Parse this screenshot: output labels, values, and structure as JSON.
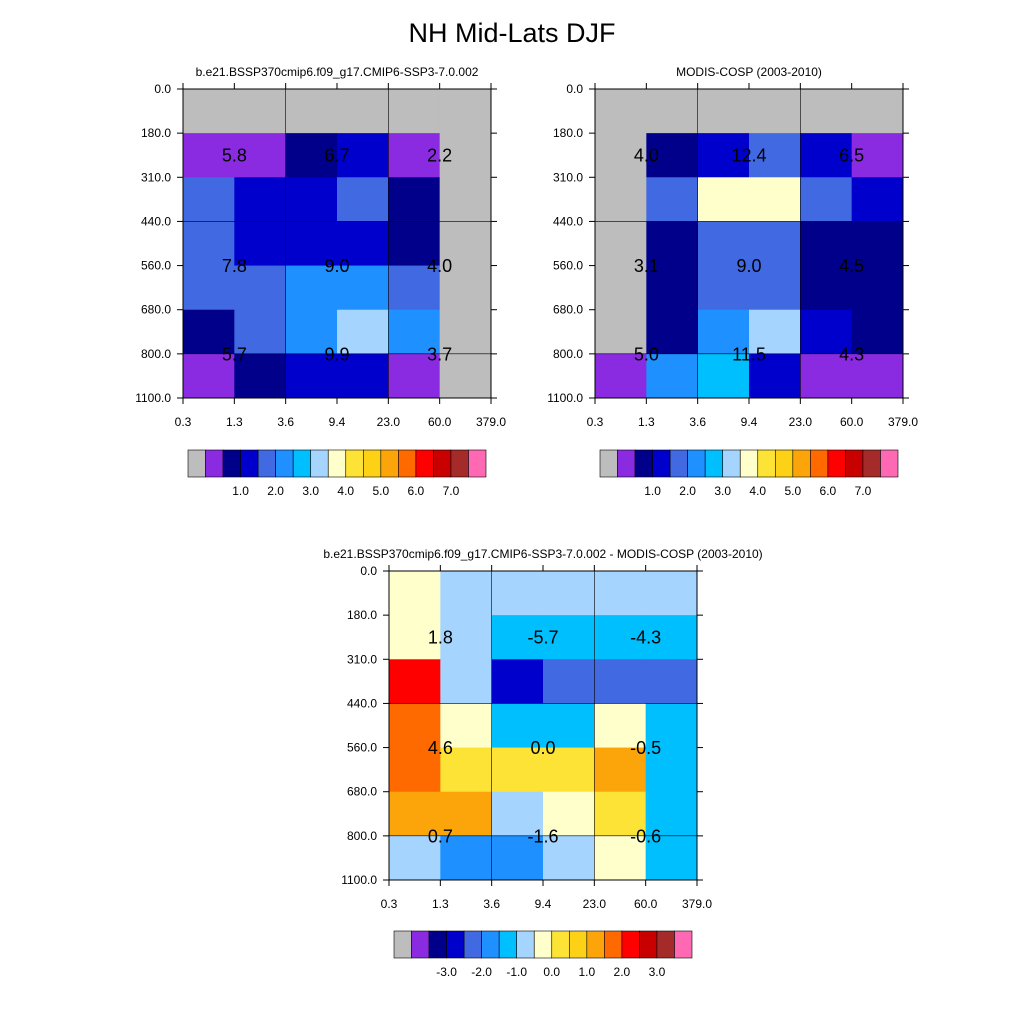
{
  "title": "NH Mid-Lats DJF",
  "palette": {
    "missing": "#bdbdbd",
    "colors": [
      "#8a2be2",
      "#00008b",
      "#0000cd",
      "#4169e1",
      "#1e90ff",
      "#00bfff",
      "#a5d4ff",
      "#ffffcc",
      "#fde335",
      "#fcd116",
      "#fca50a",
      "#ff6a00",
      "#ff0000",
      "#c80000",
      "#a52a2a",
      "#ff69b4"
    ]
  },
  "chart_data": [
    {
      "type": "heatmap",
      "title": "b.e21.BSSP370cmip6.f09_g17.CMIP6-SSP3-7.0.002",
      "x_ticks": [
        "0.3",
        "1.3",
        "3.6",
        "9.4",
        "23.0",
        "60.0",
        "379.0"
      ],
      "y_ticks": [
        "0.0",
        "180.0",
        "310.0",
        "440.0",
        "560.0",
        "680.0",
        "800.0",
        "1100.0"
      ],
      "grid_x": [
        2,
        4
      ],
      "grid_y": [
        3,
        6
      ],
      "cells": [
        [
          -1,
          -1,
          -1,
          -1,
          -1,
          -1
        ],
        [
          0,
          0,
          1,
          2,
          0,
          -1
        ],
        [
          3,
          2,
          2,
          3,
          1,
          -1
        ],
        [
          3,
          2,
          2,
          2,
          1,
          -1
        ],
        [
          3,
          3,
          4,
          4,
          3,
          -1
        ],
        [
          1,
          3,
          4,
          6,
          4,
          -1
        ],
        [
          0,
          1,
          2,
          2,
          0,
          -1
        ]
      ],
      "labels": [
        {
          "text": "5.8",
          "col": 1,
          "row": 1.5
        },
        {
          "text": "6.7",
          "col": 3,
          "row": 1.5
        },
        {
          "text": "2.2",
          "col": 5,
          "row": 1.5
        },
        {
          "text": "7.8",
          "col": 1,
          "row": 4
        },
        {
          "text": "9.0",
          "col": 3,
          "row": 4
        },
        {
          "text": "4.0",
          "col": 5,
          "row": 4
        },
        {
          "text": "5.7",
          "col": 1,
          "row": 6
        },
        {
          "text": "9.9",
          "col": 3,
          "row": 6
        },
        {
          "text": "3.7",
          "col": 5,
          "row": 6
        }
      ],
      "colorbar": {
        "labels": [
          "1.0",
          "2.0",
          "3.0",
          "4.0",
          "5.0",
          "6.0",
          "7.0"
        ]
      }
    },
    {
      "type": "heatmap",
      "title": "MODIS-COSP (2003-2010)",
      "x_ticks": [
        "0.3",
        "1.3",
        "3.6",
        "9.4",
        "23.0",
        "60.0",
        "379.0"
      ],
      "y_ticks": [
        "0.0",
        "180.0",
        "310.0",
        "440.0",
        "560.0",
        "680.0",
        "800.0",
        "1100.0"
      ],
      "grid_x": [
        2,
        4
      ],
      "grid_y": [
        3,
        6
      ],
      "cells": [
        [
          -1,
          -1,
          -1,
          -1,
          -1,
          -1
        ],
        [
          -1,
          1,
          2,
          3,
          2,
          0
        ],
        [
          -1,
          3,
          7,
          7,
          3,
          2
        ],
        [
          -1,
          1,
          3,
          3,
          1,
          1
        ],
        [
          -1,
          1,
          3,
          3,
          1,
          1
        ],
        [
          -1,
          1,
          4,
          6,
          2,
          1
        ],
        [
          0,
          4,
          5,
          2,
          0,
          0
        ]
      ],
      "labels": [
        {
          "text": "4.0",
          "col": 1,
          "row": 1.5
        },
        {
          "text": "12.4",
          "col": 3,
          "row": 1.5
        },
        {
          "text": "6.5",
          "col": 5,
          "row": 1.5
        },
        {
          "text": "3.1",
          "col": 1,
          "row": 4
        },
        {
          "text": "9.0",
          "col": 3,
          "row": 4
        },
        {
          "text": "4.5",
          "col": 5,
          "row": 4
        },
        {
          "text": "5.0",
          "col": 1,
          "row": 6
        },
        {
          "text": "11.5",
          "col": 3,
          "row": 6
        },
        {
          "text": "4.3",
          "col": 5,
          "row": 6
        }
      ],
      "colorbar": {
        "labels": [
          "1.0",
          "2.0",
          "3.0",
          "4.0",
          "5.0",
          "6.0",
          "7.0"
        ]
      }
    },
    {
      "type": "heatmap",
      "title": "b.e21.BSSP370cmip6.f09_g17.CMIP6-SSP3-7.0.002 - MODIS-COSP (2003-2010)",
      "x_ticks": [
        "0.3",
        "1.3",
        "3.6",
        "9.4",
        "23.0",
        "60.0",
        "379.0"
      ],
      "y_ticks": [
        "0.0",
        "180.0",
        "310.0",
        "440.0",
        "560.0",
        "680.0",
        "800.0",
        "1100.0"
      ],
      "grid_x": [
        2,
        4
      ],
      "grid_y": [
        3,
        6
      ],
      "cells": [
        [
          7,
          6,
          6,
          6,
          6,
          6
        ],
        [
          7,
          6,
          5,
          5,
          5,
          5
        ],
        [
          12,
          6,
          2,
          3,
          3,
          3
        ],
        [
          11,
          7,
          5,
          5,
          7,
          5
        ],
        [
          11,
          8,
          8,
          8,
          10,
          5
        ],
        [
          10,
          10,
          6,
          7,
          8,
          5
        ],
        [
          6,
          4,
          4,
          6,
          7,
          5
        ]
      ],
      "labels": [
        {
          "text": "1.8",
          "col": 1,
          "row": 1.5
        },
        {
          "text": "-5.7",
          "col": 3,
          "row": 1.5
        },
        {
          "text": "-4.3",
          "col": 5,
          "row": 1.5
        },
        {
          "text": "4.6",
          "col": 1,
          "row": 4
        },
        {
          "text": "0.0",
          "col": 3,
          "row": 4
        },
        {
          "text": "-0.5",
          "col": 5,
          "row": 4
        },
        {
          "text": "0.7",
          "col": 1,
          "row": 6
        },
        {
          "text": "-1.6",
          "col": 3,
          "row": 6
        },
        {
          "text": "-0.6",
          "col": 5,
          "row": 6
        }
      ],
      "colorbar": {
        "labels": [
          "-3.0",
          "-2.0",
          "-1.0",
          "0.0",
          "1.0",
          "2.0",
          "3.0"
        ]
      }
    }
  ]
}
